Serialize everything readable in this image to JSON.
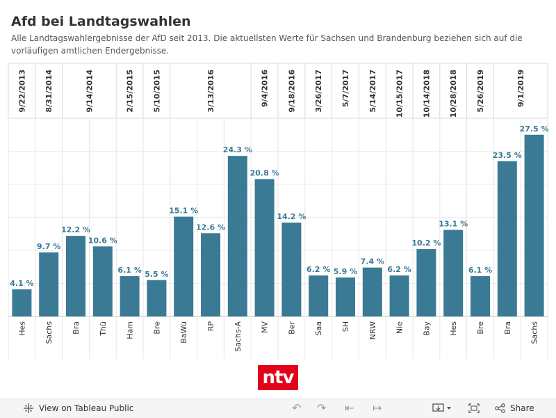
{
  "header": {
    "title": "Afd bei Landtagswahlen",
    "subtitle": "Alle Landtagswahlergebnisse der AfD seit 2013. Die aktuellsten Werte für Sachsen und Brandenburg beziehen sich auf die vorläufigen amtlichen Endergebnisse."
  },
  "chart_data": {
    "type": "bar",
    "title": "Afd bei Landtagswahlen",
    "bar_color": "#3a7a94",
    "label_color": "#3a7a94",
    "ylim": [
      0,
      30
    ],
    "grid": true,
    "date_groups": [
      {
        "label": "9/22/2013",
        "count": 1
      },
      {
        "label": "8/31/2014",
        "count": 1
      },
      {
        "label": "9/14/2014",
        "count": 2
      },
      {
        "label": "2/15/2015",
        "count": 1
      },
      {
        "label": "5/10/2015",
        "count": 1
      },
      {
        "label": "3/13/2016",
        "count": 3
      },
      {
        "label": "9/4/2016",
        "count": 1
      },
      {
        "label": "9/18/2016",
        "count": 1
      },
      {
        "label": "3/26/2017",
        "count": 1
      },
      {
        "label": "5/7/2017",
        "count": 1
      },
      {
        "label": "5/14/2017",
        "count": 1
      },
      {
        "label": "10/15/2017",
        "count": 1
      },
      {
        "label": "10/14/2018",
        "count": 1
      },
      {
        "label": "10/28/2018",
        "count": 1
      },
      {
        "label": "5/26/2019",
        "count": 1
      },
      {
        "label": "9/1/2019",
        "count": 2
      }
    ],
    "categories": [
      "Hes",
      "Sachs",
      "Bra",
      "Thü",
      "Ham",
      "Bre",
      "BaWü",
      "RP",
      "Sachs-A",
      "MV",
      "Ber",
      "Saa",
      "SH",
      "NRW",
      "Nie",
      "Bay",
      "Hes",
      "Bre",
      "Bra",
      "Sachs"
    ],
    "values": [
      4.1,
      9.7,
      12.2,
      10.6,
      6.1,
      5.5,
      15.1,
      12.6,
      24.3,
      20.8,
      14.2,
      6.2,
      5.9,
      7.4,
      6.2,
      10.2,
      13.1,
      6.1,
      23.5,
      27.5
    ],
    "value_labels": [
      "4.1 %",
      "9.7 %",
      "12.2 %",
      "10.6 %",
      "6.1 %",
      "5.5 %",
      "15.1 %",
      "12.6 %",
      "24.3 %",
      "20.8 %",
      "14.2 %",
      "6.2 %",
      "5.9 %",
      "7.4 %",
      "6.2 %",
      "10.2 %",
      "13.1 %",
      "6.1 %",
      "23.5 %",
      "27.5 %"
    ]
  },
  "logo": {
    "text": "ntv",
    "color": "#e2001a"
  },
  "footer": {
    "view_label": "View on Tableau Public",
    "share_label": "Share",
    "icons": [
      "tableau-icon",
      "undo-icon",
      "redo-icon",
      "revert-icon",
      "forward-icon",
      "download-icon",
      "fullscreen-icon",
      "share-icon"
    ]
  }
}
